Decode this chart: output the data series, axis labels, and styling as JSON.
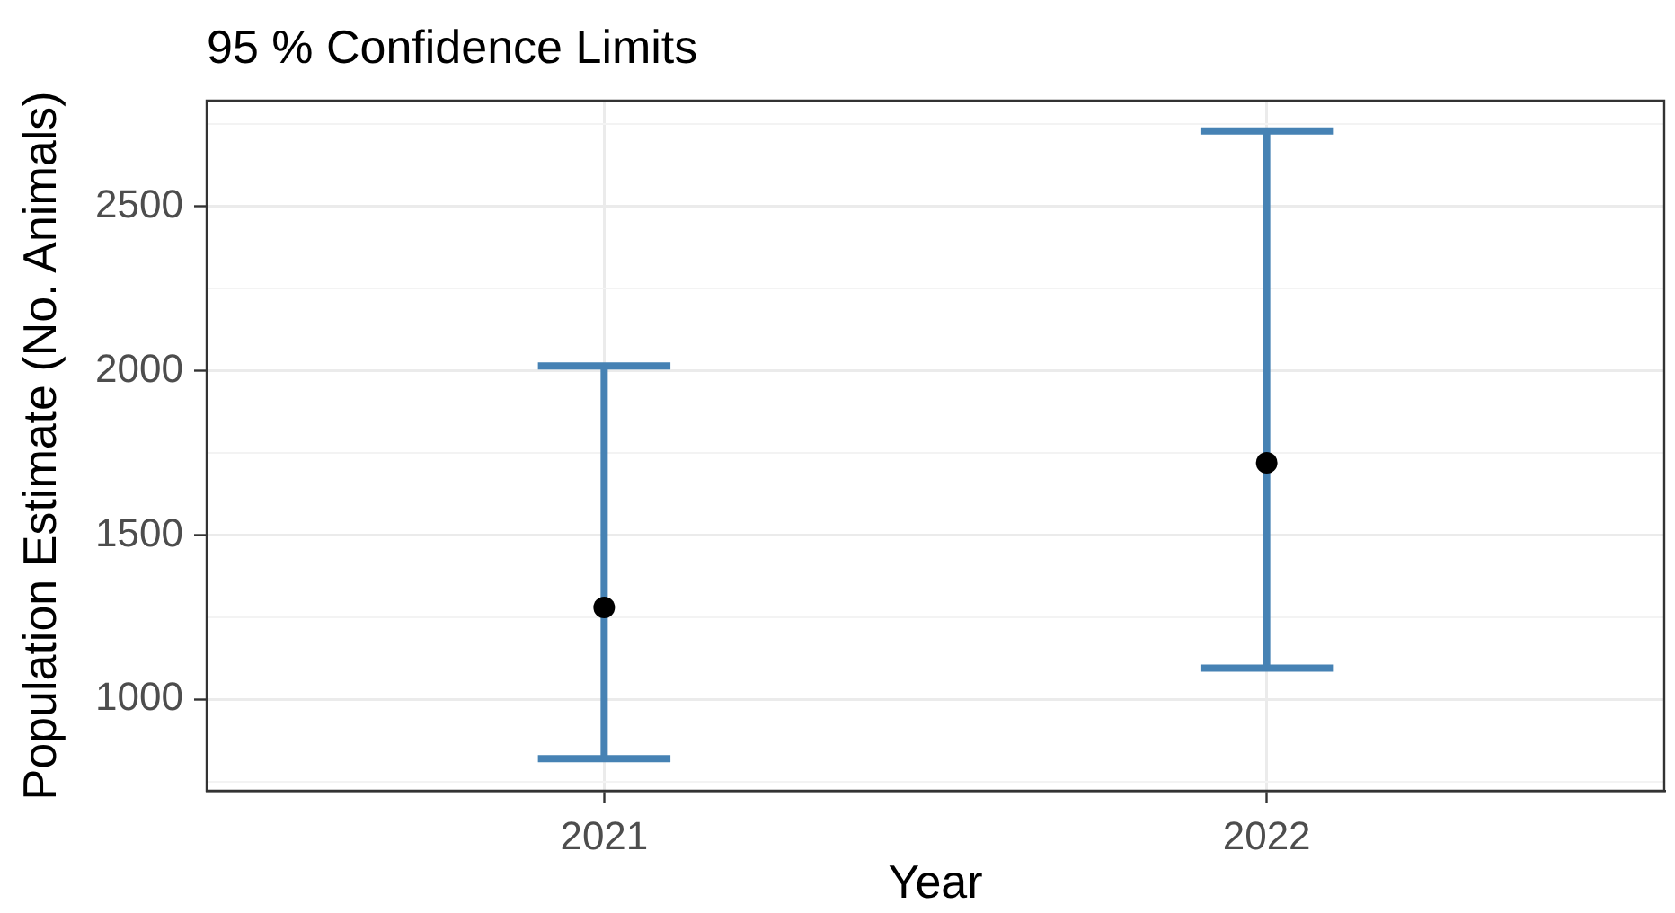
{
  "chart_data": {
    "type": "scatter",
    "title": "95 % Confidence Limits",
    "xlabel": "Year",
    "ylabel": "Population Estimate (No. Animals)",
    "categories": [
      "2021",
      "2022"
    ],
    "values": [
      1280,
      1720
    ],
    "errors": [
      [
        820,
        2015
      ],
      [
        1095,
        2730
      ]
    ],
    "color": "#000000",
    "ylim": [
      722,
      2822
    ],
    "yticks": [
      {
        "value": 750,
        "label": null
      },
      1000,
      {
        "value": 1250,
        "label": null
      },
      1500,
      {
        "value": 1750,
        "label": null
      },
      2000,
      {
        "value": 2250,
        "label": null
      },
      2500,
      {
        "value": 2750,
        "label": null
      }
    ],
    "grid": true
  }
}
